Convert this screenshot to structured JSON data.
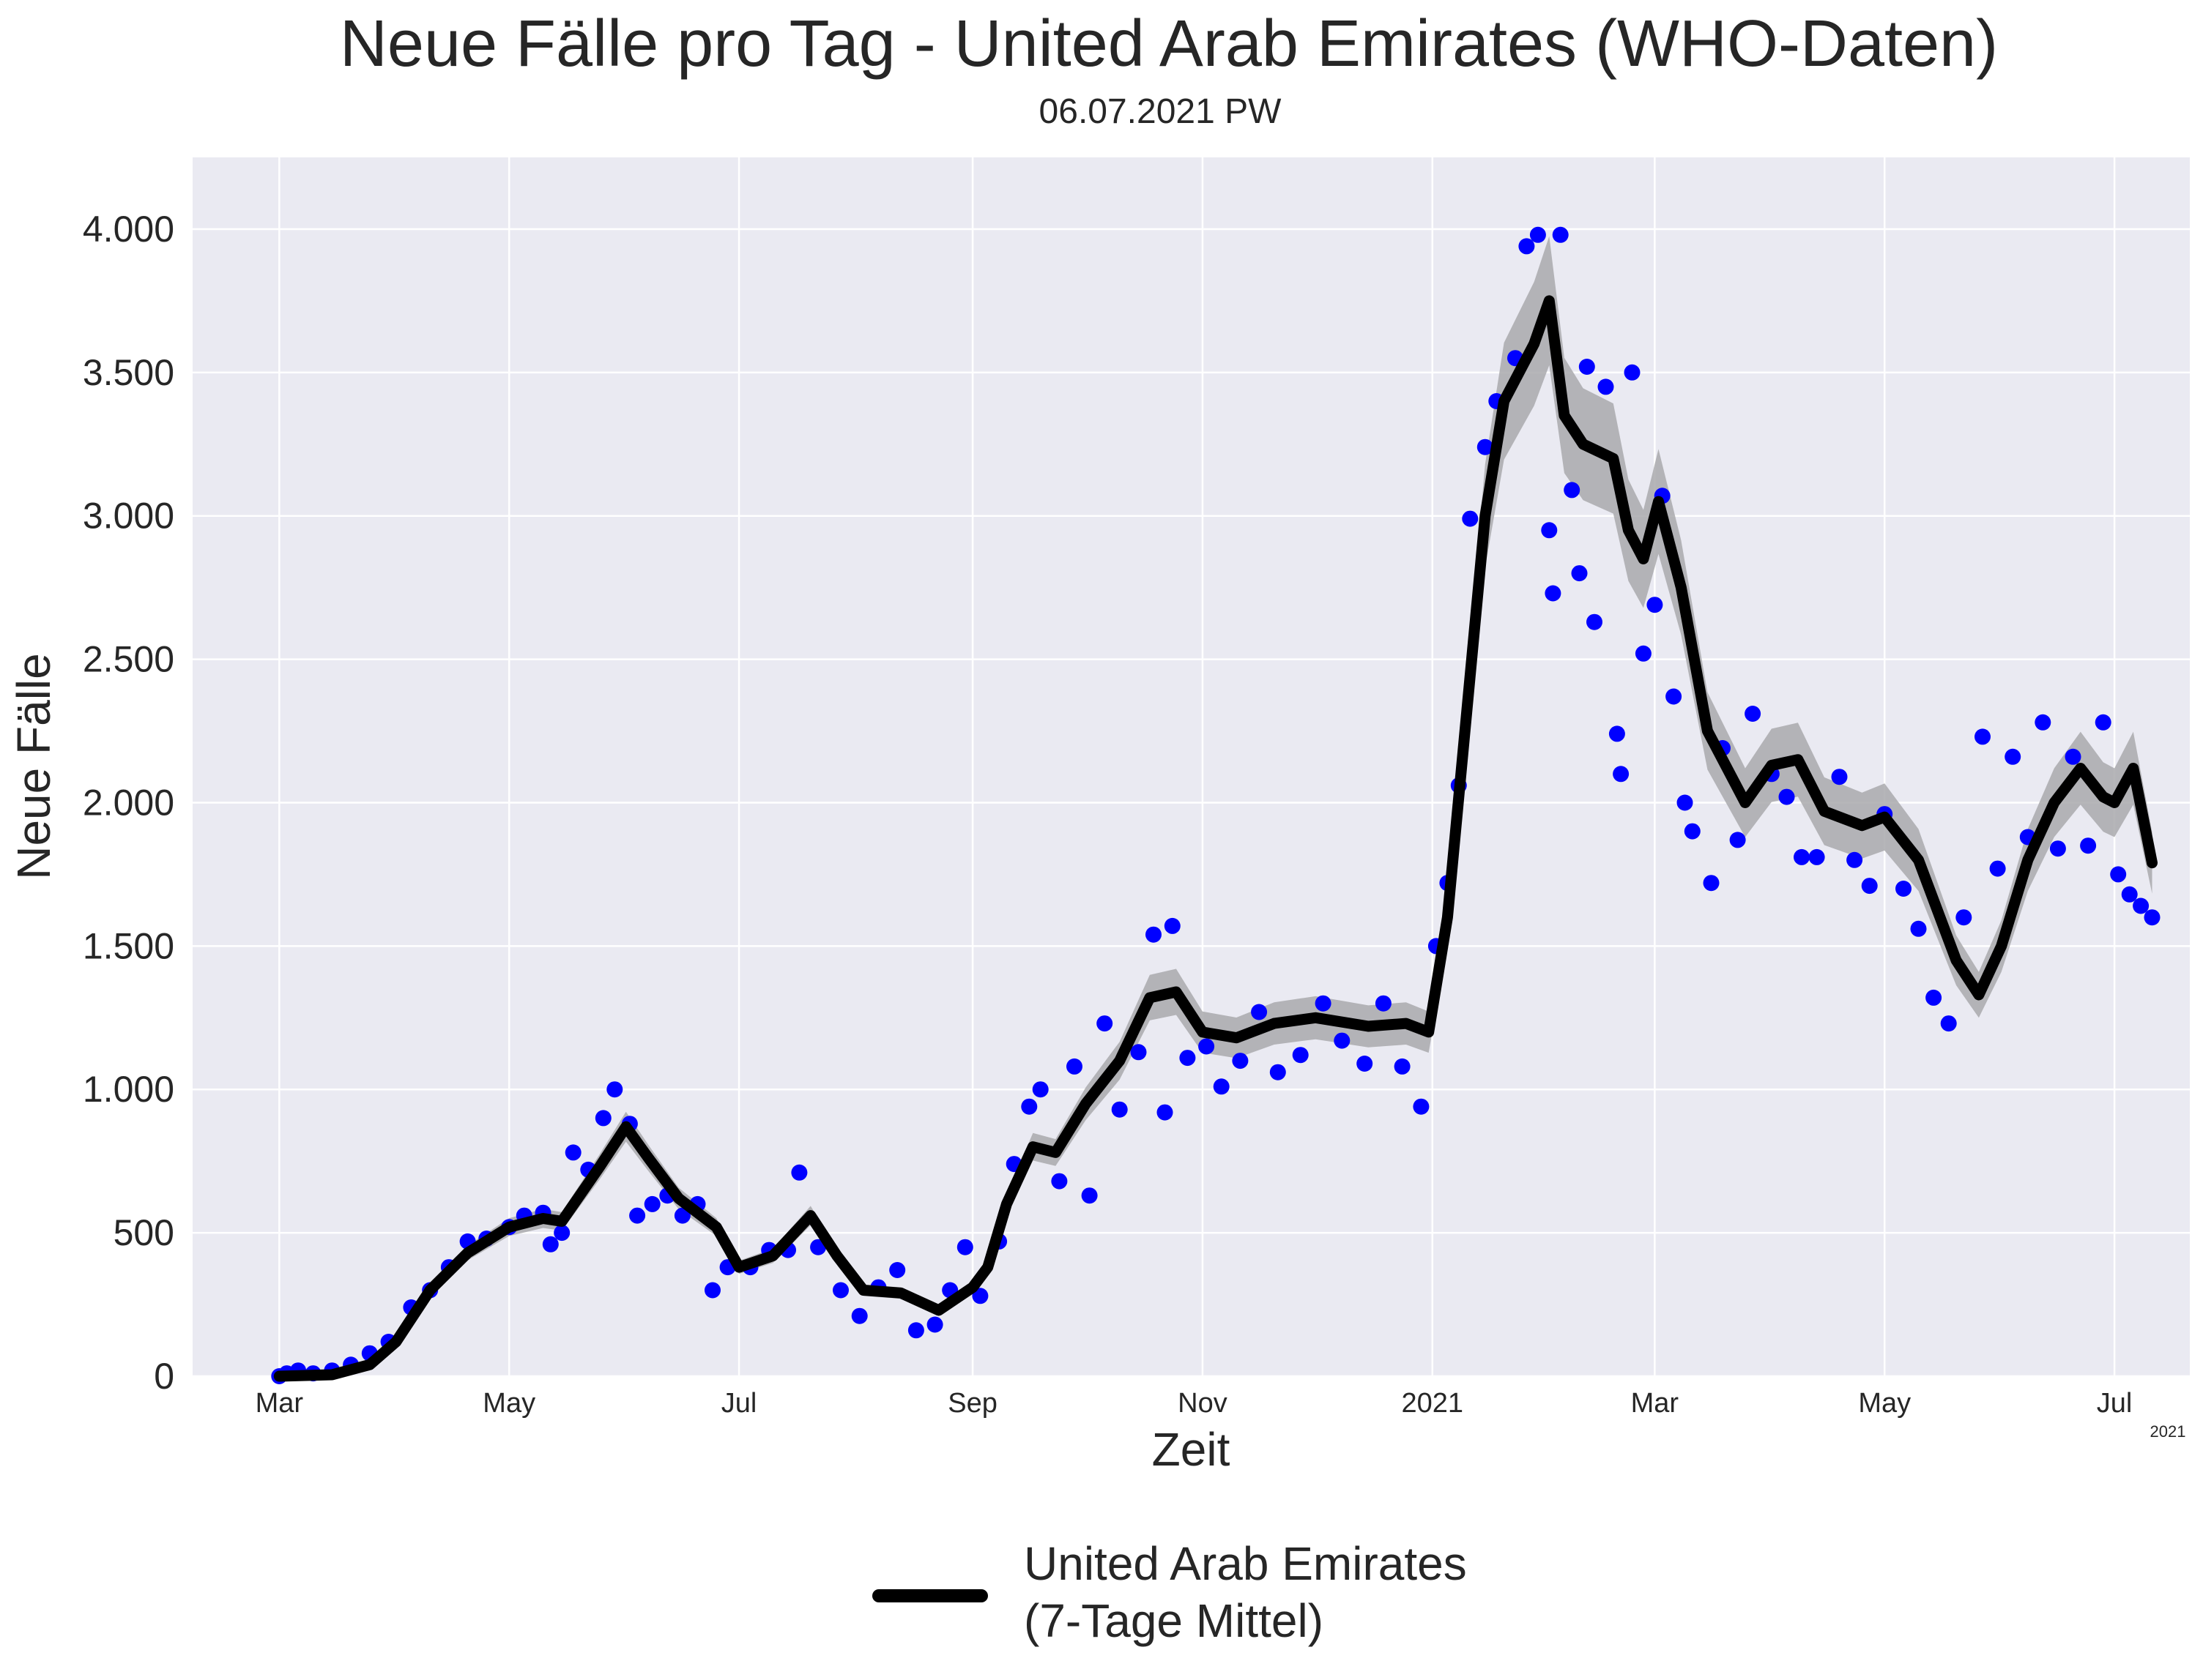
{
  "chart_data": {
    "type": "line",
    "title": "Neue Fälle pro Tag - United Arab Emirates (WHO-Daten)",
    "subtitle": "06.07.2021 PW",
    "xlabel": "Zeit",
    "ylabel": "Neue Fälle",
    "x_offset_label": "2021",
    "ylim": [
      0,
      4250
    ],
    "xlim": [
      "2020-02-07",
      "2021-07-21"
    ],
    "grid": true,
    "background_color": "#EAEAF2",
    "legend": {
      "placement": "bottom-center",
      "entries": [
        "United Arab Emirates\n(7-Tage Mittel)"
      ]
    },
    "y_ticks": [
      {
        "value": 0,
        "label": "0"
      },
      {
        "value": 500,
        "label": "500"
      },
      {
        "value": 1000,
        "label": "1.000"
      },
      {
        "value": 1500,
        "label": "1.500"
      },
      {
        "value": 2000,
        "label": "2.000"
      },
      {
        "value": 2500,
        "label": "2.500"
      },
      {
        "value": 3000,
        "label": "3.000"
      },
      {
        "value": 3500,
        "label": "3.500"
      },
      {
        "value": 4000,
        "label": "4.000"
      }
    ],
    "x_ticks": [
      {
        "date": "2020-03-01",
        "label": "Mar"
      },
      {
        "date": "2020-05-01",
        "label": "May"
      },
      {
        "date": "2020-07-01",
        "label": "Jul"
      },
      {
        "date": "2020-09-01",
        "label": "Sep"
      },
      {
        "date": "2020-11-01",
        "label": "Nov"
      },
      {
        "date": "2021-01-01",
        "label": "2021"
      },
      {
        "date": "2021-03-01",
        "label": "Mar"
      },
      {
        "date": "2021-05-01",
        "label": "May"
      },
      {
        "date": "2021-07-01",
        "label": "Jul"
      }
    ],
    "series": [
      {
        "name": "United Arab Emirates\n(7-Tage Mittel)",
        "kind": "line",
        "color": "#000000",
        "points": [
          [
            "2020-03-01",
            0
          ],
          [
            "2020-03-15",
            5
          ],
          [
            "2020-03-25",
            40
          ],
          [
            "2020-04-01",
            120
          ],
          [
            "2020-04-10",
            300
          ],
          [
            "2020-04-20",
            430
          ],
          [
            "2020-05-01",
            520
          ],
          [
            "2020-05-10",
            550
          ],
          [
            "2020-05-15",
            540
          ],
          [
            "2020-05-25",
            730
          ],
          [
            "2020-06-01",
            870
          ],
          [
            "2020-06-07",
            760
          ],
          [
            "2020-06-15",
            620
          ],
          [
            "2020-06-25",
            520
          ],
          [
            "2020-07-01",
            380
          ],
          [
            "2020-07-10",
            420
          ],
          [
            "2020-07-20",
            560
          ],
          [
            "2020-07-27",
            420
          ],
          [
            "2020-08-03",
            300
          ],
          [
            "2020-08-13",
            290
          ],
          [
            "2020-08-23",
            230
          ],
          [
            "2020-09-01",
            310
          ],
          [
            "2020-09-05",
            380
          ],
          [
            "2020-09-10",
            600
          ],
          [
            "2020-09-17",
            800
          ],
          [
            "2020-09-23",
            780
          ],
          [
            "2020-10-01",
            950
          ],
          [
            "2020-10-10",
            1100
          ],
          [
            "2020-10-18",
            1320
          ],
          [
            "2020-10-25",
            1340
          ],
          [
            "2020-11-01",
            1200
          ],
          [
            "2020-11-10",
            1180
          ],
          [
            "2020-11-20",
            1230
          ],
          [
            "2020-12-01",
            1250
          ],
          [
            "2020-12-15",
            1220
          ],
          [
            "2020-12-25",
            1230
          ],
          [
            "2020-12-31",
            1200
          ],
          [
            "2021-01-05",
            1600
          ],
          [
            "2021-01-10",
            2300
          ],
          [
            "2021-01-15",
            3000
          ],
          [
            "2021-01-20",
            3400
          ],
          [
            "2021-01-28",
            3600
          ],
          [
            "2021-02-01",
            3750
          ],
          [
            "2021-02-05",
            3350
          ],
          [
            "2021-02-10",
            3250
          ],
          [
            "2021-02-18",
            3200
          ],
          [
            "2021-02-22",
            2950
          ],
          [
            "2021-02-26",
            2850
          ],
          [
            "2021-03-02",
            3050
          ],
          [
            "2021-03-08",
            2750
          ],
          [
            "2021-03-15",
            2250
          ],
          [
            "2021-03-25",
            2000
          ],
          [
            "2021-04-01",
            2130
          ],
          [
            "2021-04-08",
            2150
          ],
          [
            "2021-04-15",
            1970
          ],
          [
            "2021-04-25",
            1920
          ],
          [
            "2021-05-01",
            1950
          ],
          [
            "2021-05-10",
            1800
          ],
          [
            "2021-05-20",
            1450
          ],
          [
            "2021-05-26",
            1330
          ],
          [
            "2021-06-01",
            1500
          ],
          [
            "2021-06-08",
            1800
          ],
          [
            "2021-06-15",
            2000
          ],
          [
            "2021-06-22",
            2120
          ],
          [
            "2021-06-28",
            2020
          ],
          [
            "2021-07-01",
            2000
          ],
          [
            "2021-07-06",
            2120
          ],
          [
            "2021-07-11",
            1790
          ]
        ]
      },
      {
        "name": "",
        "kind": "scatter",
        "color": "#0000FF",
        "note": "daily new cases (approximate reading)",
        "points": [
          [
            "2020-03-01",
            0
          ],
          [
            "2020-03-03",
            10
          ],
          [
            "2020-03-06",
            20
          ],
          [
            "2020-03-10",
            10
          ],
          [
            "2020-03-15",
            20
          ],
          [
            "2020-03-20",
            40
          ],
          [
            "2020-03-25",
            80
          ],
          [
            "2020-03-30",
            120
          ],
          [
            "2020-04-05",
            240
          ],
          [
            "2020-04-10",
            300
          ],
          [
            "2020-04-15",
            380
          ],
          [
            "2020-04-20",
            470
          ],
          [
            "2020-04-25",
            480
          ],
          [
            "2020-05-01",
            520
          ],
          [
            "2020-05-05",
            560
          ],
          [
            "2020-05-10",
            570
          ],
          [
            "2020-05-12",
            460
          ],
          [
            "2020-05-15",
            500
          ],
          [
            "2020-05-18",
            780
          ],
          [
            "2020-05-22",
            720
          ],
          [
            "2020-05-26",
            900
          ],
          [
            "2020-05-29",
            1000
          ],
          [
            "2020-06-02",
            880
          ],
          [
            "2020-06-04",
            560
          ],
          [
            "2020-06-08",
            600
          ],
          [
            "2020-06-12",
            630
          ],
          [
            "2020-06-16",
            560
          ],
          [
            "2020-06-20",
            600
          ],
          [
            "2020-06-24",
            300
          ],
          [
            "2020-06-28",
            380
          ],
          [
            "2020-07-04",
            380
          ],
          [
            "2020-07-09",
            440
          ],
          [
            "2020-07-14",
            440
          ],
          [
            "2020-07-17",
            710
          ],
          [
            "2020-07-22",
            450
          ],
          [
            "2020-07-28",
            300
          ],
          [
            "2020-08-02",
            210
          ],
          [
            "2020-08-07",
            310
          ],
          [
            "2020-08-12",
            370
          ],
          [
            "2020-08-17",
            160
          ],
          [
            "2020-08-22",
            180
          ],
          [
            "2020-08-26",
            300
          ],
          [
            "2020-08-30",
            450
          ],
          [
            "2020-09-03",
            280
          ],
          [
            "2020-09-08",
            470
          ],
          [
            "2020-09-12",
            740
          ],
          [
            "2020-09-16",
            940
          ],
          [
            "2020-09-19",
            1000
          ],
          [
            "2020-09-24",
            680
          ],
          [
            "2020-09-28",
            1080
          ],
          [
            "2020-10-02",
            630
          ],
          [
            "2020-10-06",
            1230
          ],
          [
            "2020-10-10",
            930
          ],
          [
            "2020-10-15",
            1130
          ],
          [
            "2020-10-19",
            1540
          ],
          [
            "2020-10-22",
            920
          ],
          [
            "2020-10-24",
            1570
          ],
          [
            "2020-10-28",
            1110
          ],
          [
            "2020-11-02",
            1150
          ],
          [
            "2020-11-06",
            1010
          ],
          [
            "2020-11-11",
            1100
          ],
          [
            "2020-11-16",
            1270
          ],
          [
            "2020-11-21",
            1060
          ],
          [
            "2020-11-27",
            1120
          ],
          [
            "2020-12-03",
            1300
          ],
          [
            "2020-12-08",
            1170
          ],
          [
            "2020-12-14",
            1090
          ],
          [
            "2020-12-19",
            1300
          ],
          [
            "2020-12-24",
            1080
          ],
          [
            "2020-12-29",
            940
          ],
          [
            "2021-01-02",
            1500
          ],
          [
            "2021-01-05",
            1720
          ],
          [
            "2021-01-08",
            2060
          ],
          [
            "2021-01-11",
            2990
          ],
          [
            "2021-01-15",
            3240
          ],
          [
            "2021-01-18",
            3400
          ],
          [
            "2021-01-23",
            3550
          ],
          [
            "2021-01-26",
            3940
          ],
          [
            "2021-01-29",
            3980
          ],
          [
            "2021-02-01",
            2950
          ],
          [
            "2021-02-02",
            2730
          ],
          [
            "2021-02-04",
            3980
          ],
          [
            "2021-02-07",
            3090
          ],
          [
            "2021-02-09",
            2800
          ],
          [
            "2021-02-11",
            3520
          ],
          [
            "2021-02-13",
            2630
          ],
          [
            "2021-02-16",
            3450
          ],
          [
            "2021-02-19",
            2240
          ],
          [
            "2021-02-20",
            2100
          ],
          [
            "2021-02-23",
            3500
          ],
          [
            "2021-02-26",
            2520
          ],
          [
            "2021-03-01",
            2690
          ],
          [
            "2021-03-03",
            3070
          ],
          [
            "2021-03-06",
            2370
          ],
          [
            "2021-03-09",
            2000
          ],
          [
            "2021-03-11",
            1900
          ],
          [
            "2021-03-16",
            1720
          ],
          [
            "2021-03-19",
            2190
          ],
          [
            "2021-03-23",
            1870
          ],
          [
            "2021-03-27",
            2310
          ],
          [
            "2021-04-01",
            2100
          ],
          [
            "2021-04-05",
            2020
          ],
          [
            "2021-04-09",
            1810
          ],
          [
            "2021-04-13",
            1810
          ],
          [
            "2021-04-19",
            2090
          ],
          [
            "2021-04-23",
            1800
          ],
          [
            "2021-04-27",
            1710
          ],
          [
            "2021-05-01",
            1960
          ],
          [
            "2021-05-06",
            1700
          ],
          [
            "2021-05-10",
            1560
          ],
          [
            "2021-05-14",
            1320
          ],
          [
            "2021-05-18",
            1230
          ],
          [
            "2021-05-22",
            1600
          ],
          [
            "2021-05-27",
            2230
          ],
          [
            "2021-05-31",
            1770
          ],
          [
            "2021-06-04",
            2160
          ],
          [
            "2021-06-08",
            1880
          ],
          [
            "2021-06-12",
            2280
          ],
          [
            "2021-06-16",
            1840
          ],
          [
            "2021-06-20",
            2160
          ],
          [
            "2021-06-24",
            1850
          ],
          [
            "2021-06-28",
            2280
          ],
          [
            "2021-07-02",
            1750
          ],
          [
            "2021-07-05",
            1680
          ],
          [
            "2021-07-08",
            1640
          ],
          [
            "2021-07-11",
            1600
          ]
        ]
      }
    ]
  }
}
